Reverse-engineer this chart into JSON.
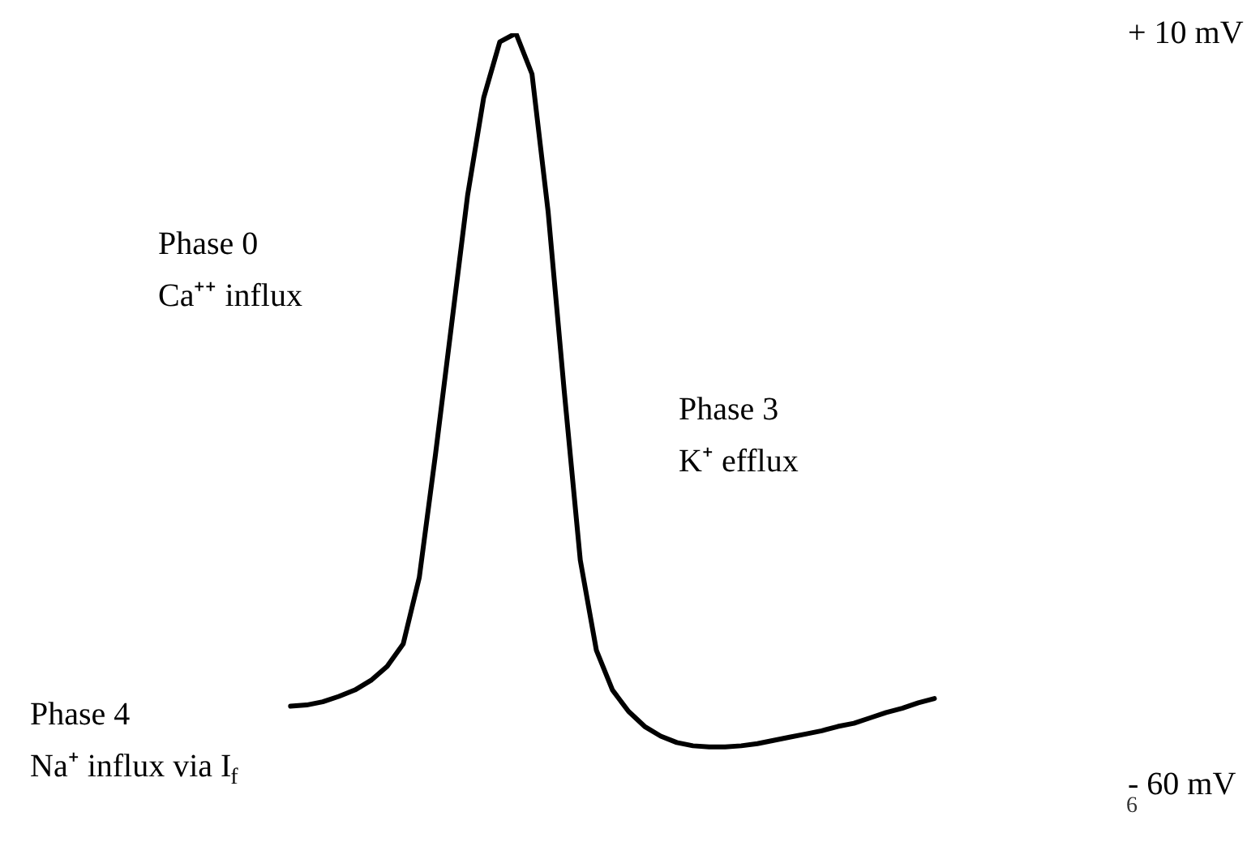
{
  "chart_data": {
    "type": "line",
    "categories": [
      null,
      null,
      null,
      null,
      null,
      null,
      null,
      null,
      null,
      null,
      null,
      null,
      null,
      null,
      null,
      null,
      null,
      null,
      null,
      null,
      null,
      null,
      null,
      null,
      null,
      null,
      null,
      null,
      null,
      null,
      null,
      null,
      null,
      null,
      null,
      null,
      null,
      null,
      null,
      null,
      null
    ],
    "series": [
      {
        "color": "#000000",
        "values": [
          -52.7,
          -52.6,
          -52.3,
          -51.8,
          -51.2,
          -50.3,
          -49.0,
          -46.9,
          -40.7,
          -29.3,
          -17.2,
          -5.1,
          4.0,
          9.2,
          10.0,
          6.2,
          -6.6,
          -23.3,
          -39.1,
          -47.5,
          -51.2,
          -53.2,
          -54.6,
          -55.5,
          -56.1,
          -56.4,
          -56.5,
          -56.5,
          -56.4,
          -56.2,
          -55.9,
          -55.6,
          -55.3,
          -55.0,
          -54.6,
          -54.3,
          -53.8,
          -53.3,
          -52.9,
          -52.4,
          -52.0
        ]
      }
    ],
    "ylim": [
      -60,
      10
    ],
    "yticks": [
      {
        "value": 10,
        "label": "+ 10 mV"
      },
      {
        "value": -60,
        "label": "- 60 mV"
      }
    ],
    "tick_labels": "y",
    "marker": "none",
    "line_style": "solid",
    "annotations": [
      "Phase 0\nCa⁺⁺ influx",
      "Phase 3\nK⁺ efflux",
      "Phase 4\nNa⁺ influx via I$_{f}$",
      "6"
    ]
  }
}
